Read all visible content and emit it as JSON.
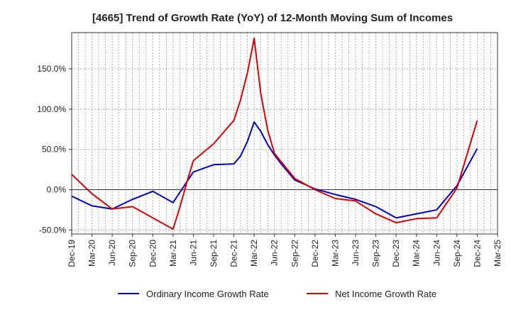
{
  "chart_data": {
    "type": "line",
    "title": "[4665]  Trend of Growth Rate (YoY) of 12-Month Moving Sum of Incomes",
    "xlabel": "",
    "ylabel": "",
    "ylim": [
      -55,
      195
    ],
    "y_ticks": [
      -50,
      0,
      50,
      100,
      150
    ],
    "y_tick_labels": [
      "-50.0%",
      "0.0%",
      "50.0%",
      "100.0%",
      "150.0%"
    ],
    "x_tick_labels": [
      "Dec-19",
      "Mar-20",
      "Jun-20",
      "Sep-20",
      "Dec-20",
      "Mar-21",
      "Jun-21",
      "Sep-21",
      "Dec-21",
      "Mar-22",
      "Jun-22",
      "Sep-22",
      "Dec-22",
      "Mar-23",
      "Jun-23",
      "Sep-23",
      "Dec-23",
      "Mar-24",
      "Jun-24",
      "Sep-24",
      "Dec-24",
      "Mar-25"
    ],
    "x": [
      "2019-12",
      "2020-01",
      "2020-02",
      "2020-03",
      "2020-04",
      "2020-05",
      "2020-06",
      "2020-07",
      "2020-08",
      "2020-09",
      "2020-10",
      "2020-11",
      "2020-12",
      "2021-01",
      "2021-02",
      "2021-03",
      "2021-04",
      "2021-05",
      "2021-06",
      "2021-07",
      "2021-08",
      "2021-09",
      "2021-10",
      "2021-11",
      "2021-12",
      "2022-01",
      "2022-02",
      "2022-03",
      "2022-04",
      "2022-05",
      "2022-06",
      "2022-07",
      "2022-08",
      "2022-09",
      "2022-10",
      "2022-11",
      "2022-12",
      "2023-01",
      "2023-02",
      "2023-03",
      "2023-04",
      "2023-05",
      "2023-06",
      "2023-07",
      "2023-08",
      "2023-09",
      "2023-10",
      "2023-11",
      "2023-12",
      "2024-01",
      "2024-02",
      "2024-03",
      "2024-04",
      "2024-05",
      "2024-06",
      "2024-07",
      "2024-08",
      "2024-09",
      "2024-10",
      "2024-11",
      "2024-12",
      "2025-01",
      "2025-02",
      "2025-03"
    ],
    "grid": true,
    "legend_position": "bottom",
    "series": [
      {
        "name": "Ordinary Income Growth Rate",
        "color": "#0000cc",
        "values": [
          -8,
          null,
          null,
          -20,
          null,
          null,
          -24,
          null,
          null,
          -12,
          null,
          null,
          -2,
          null,
          null,
          -16,
          null,
          null,
          22,
          null,
          null,
          31,
          null,
          null,
          32,
          42,
          60,
          84,
          72,
          56,
          43,
          32,
          22,
          12,
          null,
          null,
          1,
          null,
          null,
          -6,
          null,
          null,
          -12,
          null,
          null,
          -21,
          null,
          null,
          -35,
          null,
          null,
          -30,
          null,
          null,
          -25,
          null,
          null,
          5,
          null,
          null,
          51,
          null,
          null,
          null
        ]
      },
      {
        "name": "Net Income Growth Rate",
        "color": "#dd0000",
        "values": [
          19,
          null,
          null,
          -5,
          null,
          null,
          -24,
          null,
          null,
          -21,
          null,
          null,
          -35,
          null,
          null,
          -49,
          -22,
          8,
          36,
          null,
          null,
          57,
          null,
          null,
          86,
          112,
          145,
          188,
          118,
          74,
          45,
          null,
          null,
          14,
          null,
          null,
          0,
          null,
          null,
          -11,
          null,
          null,
          -14,
          null,
          null,
          -30,
          null,
          null,
          -41,
          null,
          null,
          -36,
          null,
          null,
          -35,
          null,
          null,
          2,
          null,
          null,
          86,
          null,
          null,
          null
        ]
      }
    ]
  }
}
